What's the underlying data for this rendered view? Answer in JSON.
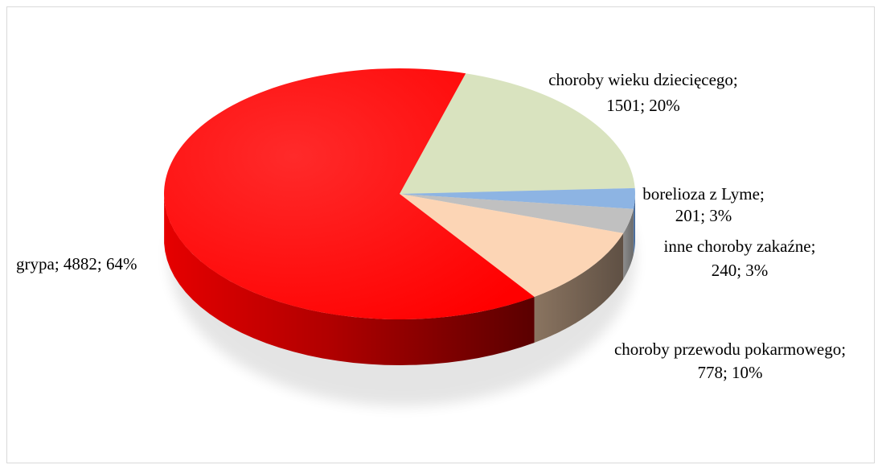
{
  "chart_data": {
    "type": "pie",
    "title": "",
    "three_d": true,
    "categories": [
      "choroby wieku dziecięcego",
      "borelioza z Lyme",
      "inne choroby zakaźne",
      "choroby przewodu pokarmowego",
      "grypa"
    ],
    "values": [
      1501,
      201,
      240,
      778,
      4882
    ],
    "percents": [
      20,
      3,
      3,
      10,
      64
    ],
    "colors": [
      "#d9e3bf",
      "#8db4e3",
      "#c0c0c0",
      "#fcd5b5",
      "#ff0000"
    ],
    "labels": [
      {
        "line1": "choroby wieku dziecięcego;",
        "line2": "1501; 20%"
      },
      {
        "line1": "borelioza z Lyme;",
        "line2": "201; 3%"
      },
      {
        "line1": "inne choroby zakaźne;",
        "line2": "240; 3%"
      },
      {
        "line1": "choroby przewodu pokarmowego;",
        "line2": "778; 10%"
      },
      {
        "line1": "grypa;  4882; 64%",
        "line2": ""
      }
    ],
    "legend": "none"
  }
}
